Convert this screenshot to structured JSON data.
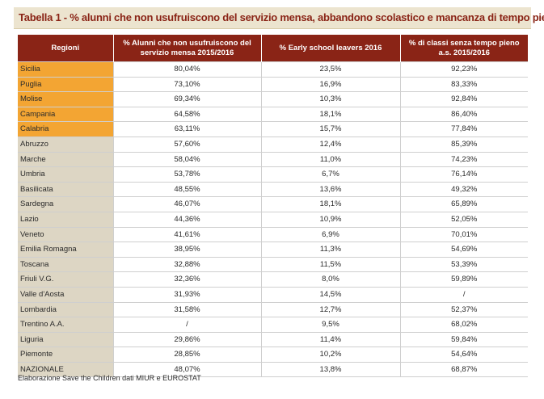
{
  "title": {
    "prefix": "Tabella 1 - ",
    "text": "% alunni che non usufruiscono del servizio mensa, abbandono scolastico e mancanza di tempo pieno"
  },
  "headers": [
    "Regioni",
    "% Alunni che non usufruiscono del servizio mensa 2015/2016",
    "% Early school leavers 2016",
    "% di classi senza tempo pieno a.s. 2015/2016"
  ],
  "rows": [
    {
      "region": "Sicilia",
      "mensa": "80,04%",
      "early": "23,5%",
      "tempo": "92,23%",
      "highlight": true
    },
    {
      "region": "Puglia",
      "mensa": "73,10%",
      "early": "16,9%",
      "tempo": "83,33%",
      "highlight": true
    },
    {
      "region": "Molise",
      "mensa": "69,34%",
      "early": "10,3%",
      "tempo": "92,84%",
      "highlight": true
    },
    {
      "region": "Campania",
      "mensa": "64,58%",
      "early": "18,1%",
      "tempo": "86,40%",
      "highlight": true
    },
    {
      "region": "Calabria",
      "mensa": "63,11%",
      "early": "15,7%",
      "tempo": "77,84%",
      "highlight": true
    },
    {
      "region": "Abruzzo",
      "mensa": "57,60%",
      "early": "12,4%",
      "tempo": "85,39%",
      "highlight": false
    },
    {
      "region": "Marche",
      "mensa": "58,04%",
      "early": "11,0%",
      "tempo": "74,23%",
      "highlight": false
    },
    {
      "region": "Umbria",
      "mensa": "53,78%",
      "early": "6,7%",
      "tempo": "76,14%",
      "highlight": false
    },
    {
      "region": "Basilicata",
      "mensa": "48,55%",
      "early": "13,6%",
      "tempo": "49,32%",
      "highlight": false
    },
    {
      "region": "Sardegna",
      "mensa": "46,07%",
      "early": "18,1%",
      "tempo": "65,89%",
      "highlight": false
    },
    {
      "region": "Lazio",
      "mensa": "44,36%",
      "early": "10,9%",
      "tempo": "52,05%",
      "highlight": false
    },
    {
      "region": "Veneto",
      "mensa": "41,61%",
      "early": "6,9%",
      "tempo": "70,01%",
      "highlight": false
    },
    {
      "region": "Emilia Romagna",
      "mensa": "38,95%",
      "early": "11,3%",
      "tempo": "54,69%",
      "highlight": false
    },
    {
      "region": "Toscana",
      "mensa": "32,88%",
      "early": "11,5%",
      "tempo": "53,39%",
      "highlight": false
    },
    {
      "region": "Friuli V.G.",
      "mensa": "32,36%",
      "early": "8,0%",
      "tempo": "59,89%",
      "highlight": false
    },
    {
      "region": "Valle d'Aosta",
      "mensa": "31,93%",
      "early": "14,5%",
      "tempo": "/",
      "highlight": false
    },
    {
      "region": "Lombardia",
      "mensa": "31,58%",
      "early": "12,7%",
      "tempo": "52,37%",
      "highlight": false
    },
    {
      "region": "Trentino A.A.",
      "mensa": "/",
      "early": "9,5%",
      "tempo": "68,02%",
      "highlight": false
    },
    {
      "region": "Liguria",
      "mensa": "29,86%",
      "early": "11,4%",
      "tempo": "59,84%",
      "highlight": false
    },
    {
      "region": "Piemonte",
      "mensa": "28,85%",
      "early": "10,2%",
      "tempo": "54,64%",
      "highlight": false
    },
    {
      "region": "NAZIONALE",
      "mensa": "48,07%",
      "early": "13,8%",
      "tempo": "68,87%",
      "highlight": false
    }
  ],
  "footnote": "Elaborazione Save the Children dati MIUR e EUROSTAT",
  "colors": {
    "header_bg": "#8a2416",
    "title_bg": "#ece4cf",
    "highlight": "#f3a533",
    "region_bg": "#ddd6c4"
  }
}
